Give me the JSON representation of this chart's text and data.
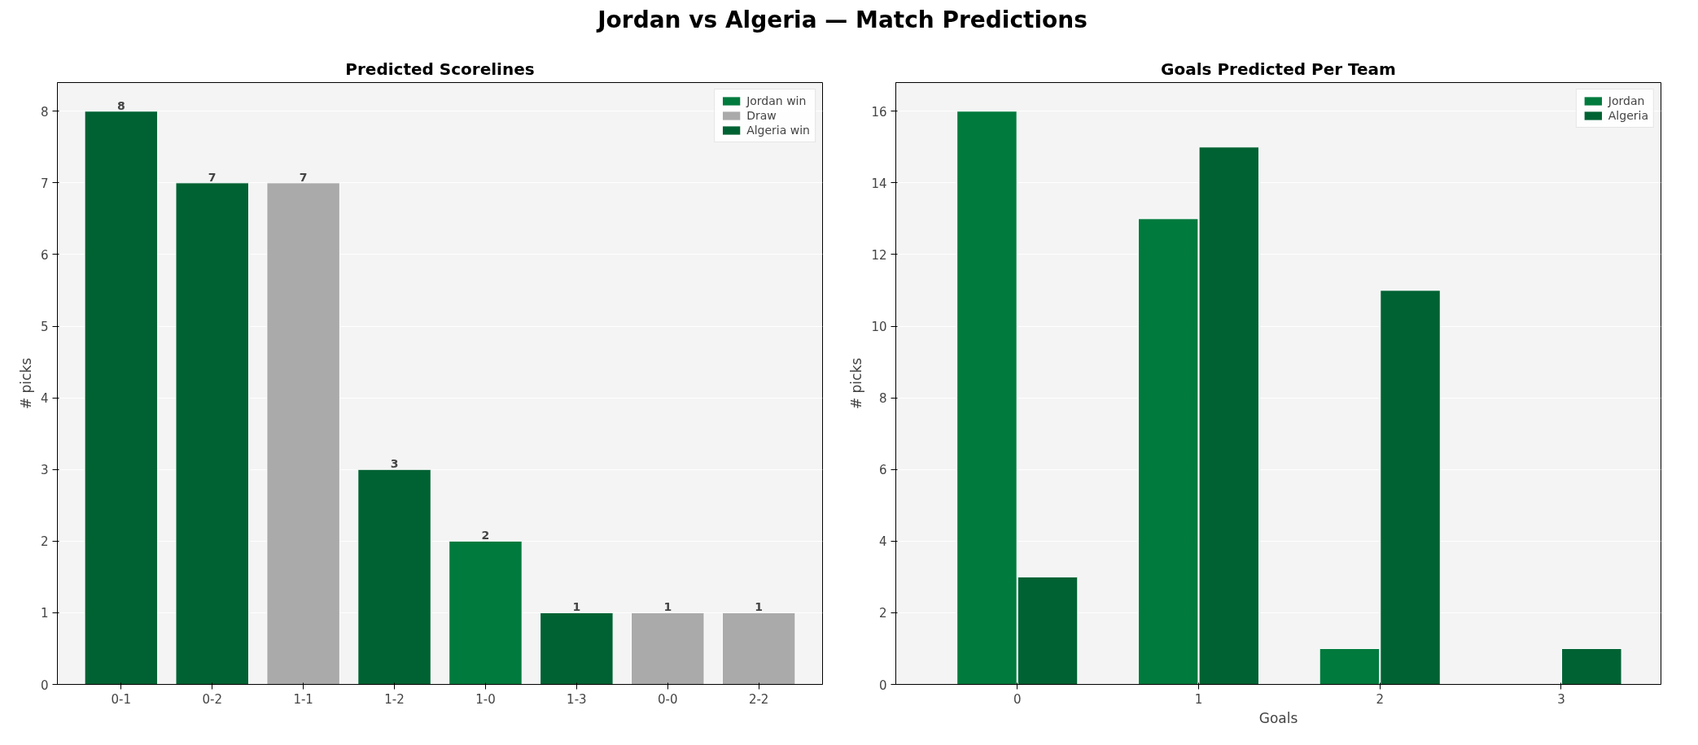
{
  "chart_data": [
    {
      "type": "bar",
      "title": "Predicted Scorelines",
      "annotations": [
        "Jordan vs Algeria  —  Match Predictions"
      ],
      "ylabel": "# picks",
      "categories": [
        "0-1",
        "0-2",
        "1-1",
        "1-2",
        "1-0",
        "1-3",
        "0-0",
        "2-2"
      ],
      "stacked": true,
      "series": [
        {
          "name": "Jordan win",
          "color": "#007a3d",
          "values": [
            null,
            null,
            null,
            null,
            2,
            null,
            null,
            null
          ]
        },
        {
          "name": "Draw",
          "color": "#aaaaaa",
          "values": [
            null,
            null,
            7,
            null,
            null,
            null,
            1,
            1
          ]
        },
        {
          "name": "Algeria win",
          "color": "#006233",
          "values": [
            8,
            7,
            null,
            3,
            null,
            1,
            null,
            null
          ]
        }
      ],
      "ylim": [
        0,
        8.4
      ],
      "yticks": [
        0,
        1,
        2,
        3,
        4,
        5,
        6,
        7,
        8
      ],
      "grid": "y",
      "legend": "top right",
      "data_labels": true
    },
    {
      "type": "bar",
      "title": "Goals Predicted Per Team",
      "xlabel": "Goals",
      "ylabel": "# picks",
      "x": [
        0,
        1,
        2,
        3
      ],
      "series": [
        {
          "name": "Jordan",
          "color": "#007a3d",
          "values": [
            16,
            13,
            1,
            0
          ]
        },
        {
          "name": "Algeria",
          "color": "#006233",
          "values": [
            3,
            15,
            11,
            1
          ]
        }
      ],
      "xlim": [
        -0.67,
        3.55
      ],
      "xticks": [
        0,
        1,
        2,
        3
      ],
      "ylim": [
        0,
        16.8
      ],
      "yticks": [
        0,
        2,
        4,
        6,
        8,
        10,
        12,
        14,
        16
      ],
      "grid": "y",
      "legend": "top right"
    }
  ]
}
